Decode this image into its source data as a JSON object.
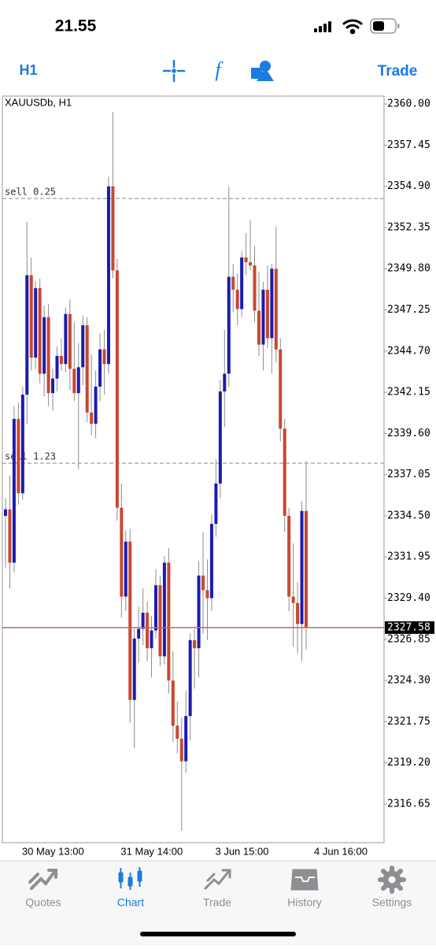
{
  "status_bar": {
    "time": "21.55"
  },
  "toolbar": {
    "timeframe": "H1",
    "trade": "Trade"
  },
  "chart_data": {
    "type": "candlestick",
    "title": "XAUUSDb, H1",
    "categories": [
      null,
      null,
      "30 May 13:00",
      null,
      null,
      null,
      null,
      null,
      null,
      null,
      null,
      null,
      null,
      null,
      null,
      null,
      null,
      null,
      null,
      null,
      null,
      null,
      null,
      null,
      null,
      "31 May 14:00",
      null,
      null,
      null,
      null,
      null,
      null,
      null,
      null,
      null,
      null,
      null,
      null,
      null,
      null,
      null,
      null,
      null,
      null,
      null,
      null,
      null,
      "3 Jun 15:00",
      null,
      null,
      null,
      null,
      null,
      null,
      null,
      null,
      null,
      null,
      null,
      null,
      null,
      null,
      null,
      null,
      null,
      null,
      null,
      null,
      null,
      null,
      "4 Jun 16:00"
    ],
    "open": [
      2334.5,
      2334.9,
      2331.6,
      2340.5,
      2335.9,
      2342.0,
      2349.4,
      2344.3,
      2348.6,
      2343.3,
      2346.8,
      2342.1,
      2343.0,
      2344.4,
      2343.9,
      2347.0,
      2343.6,
      2342.1,
      2343.7,
      2346.3,
      2340.9,
      2340.2,
      2342.5,
      2344.8,
      2343.9,
      2354.9,
      2349.7,
      2335.0,
      2329.5,
      2332.9,
      2323.1,
      2326.9,
      2327.5,
      2328.5,
      2326.3,
      2327.4,
      2330.2,
      2325.8,
      2331.6,
      2324.3,
      2321.5,
      2320.7,
      2319.3,
      2322.1,
      2326.8,
      2326.3,
      2330.8,
      2329.9,
      2329.4,
      2334.0,
      2336.5,
      2342.2,
      2343.3,
      2349.3,
      2348.5,
      2347.3,
      2350.5,
      2350.2,
      2350.0,
      2347.2,
      2345.1,
      2348.5,
      2345.5,
      2349.8,
      2344.8,
      2339.9,
      2334.5,
      2329.5,
      2329.1,
      2327.8,
      2334.8
    ],
    "high": [
      2335.6,
      2337.0,
      2341.3,
      2341.5,
      2342.5,
      2352.7,
      2350.5,
      2349.0,
      2349.2,
      2347.5,
      2347.6,
      2343.6,
      2345.0,
      2345.5,
      2347.4,
      2347.9,
      2346.5,
      2345.2,
      2346.9,
      2346.8,
      2344.5,
      2343.5,
      2345.8,
      2346.0,
      2355.5,
      2359.5,
      2350.4,
      2336.5,
      2333.6,
      2333.7,
      2327.5,
      2328.9,
      2330.0,
      2329.2,
      2328.3,
      2331.2,
      2330.8,
      2332.0,
      2332.5,
      2326.1,
      2323.0,
      2322.0,
      2323.7,
      2327.2,
      2327.5,
      2331.7,
      2333.5,
      2331.8,
      2334.6,
      2338.0,
      2342.9,
      2346.0,
      2354.9,
      2350.1,
      2349.5,
      2350.9,
      2352.0,
      2352.8,
      2351.2,
      2349.6,
      2349.0,
      2350.0,
      2350.1,
      2352.4,
      2345.5,
      2340.5,
      2335.0,
      2332.8,
      2330.4,
      2335.4,
      2337.9
    ],
    "low": [
      2331.3,
      2330.0,
      2331.0,
      2335.2,
      2335.5,
      2340.2,
      2343.5,
      2343.6,
      2342.7,
      2341.9,
      2341.3,
      2341.0,
      2342.2,
      2343.5,
      2343.4,
      2342.3,
      2341.6,
      2337.4,
      2342.6,
      2340.3,
      2339.5,
      2339.3,
      2341.6,
      2342.0,
      2343.3,
      2349.2,
      2334.2,
      2328.2,
      2328.6,
      2321.7,
      2320.1,
      2325.4,
      2326.5,
      2325.5,
      2324.5,
      2326.9,
      2325.2,
      2325.3,
      2323.5,
      2320.5,
      2319.8,
      2315.0,
      2318.6,
      2320.6,
      2323.8,
      2324.5,
      2327.2,
      2326.8,
      2328.6,
      2333.2,
      2335.6,
      2340.0,
      2342.5,
      2347.1,
      2346.3,
      2346.8,
      2349.4,
      2349.7,
      2346.5,
      2344.4,
      2343.5,
      2344.9,
      2343.3,
      2344.0,
      2339.1,
      2333.5,
      2328.6,
      2326.4,
      2326.0,
      2325.5,
      2326.2
    ],
    "close": [
      2334.9,
      2331.6,
      2340.5,
      2335.9,
      2342.0,
      2349.4,
      2344.3,
      2348.6,
      2343.3,
      2346.8,
      2342.1,
      2343.0,
      2344.4,
      2343.9,
      2347.0,
      2343.6,
      2342.1,
      2343.7,
      2346.3,
      2340.9,
      2340.2,
      2342.5,
      2344.8,
      2343.9,
      2354.9,
      2349.7,
      2335.0,
      2329.5,
      2332.9,
      2323.1,
      2326.9,
      2327.5,
      2328.5,
      2326.3,
      2327.4,
      2330.2,
      2325.8,
      2331.6,
      2324.3,
      2321.5,
      2320.7,
      2319.3,
      2322.1,
      2326.8,
      2326.3,
      2330.8,
      2329.9,
      2329.4,
      2334.0,
      2336.5,
      2342.2,
      2343.3,
      2349.3,
      2348.5,
      2347.3,
      2350.5,
      2350.2,
      2350.0,
      2347.2,
      2345.1,
      2348.5,
      2345.5,
      2349.8,
      2344.8,
      2339.9,
      2334.5,
      2329.5,
      2329.1,
      2327.8,
      2334.8,
      2327.58
    ],
    "up_color": "#1c1cae",
    "down_color": "#c9472f",
    "ylim": [
      2314.26,
      2360.49
    ],
    "yticks": [
      {
        "value": 2360,
        "label": "2360.00"
      },
      2357.45,
      {
        "value": 2354.9,
        "label": "2354.90"
      },
      2352.35,
      {
        "value": 2349.8,
        "label": "2349.80"
      },
      2347.25,
      {
        "value": 2344.7,
        "label": "2344.70"
      },
      2342.15,
      {
        "value": 2339.6,
        "label": "2339.60"
      },
      2337.05,
      {
        "value": 2334.5,
        "label": "2334.50"
      },
      2331.95,
      {
        "value": 2329.4,
        "label": "2329.40"
      },
      2326.85,
      {
        "value": 2324.3,
        "label": "2324.30"
      },
      2321.75,
      {
        "value": 2319.2,
        "label": "2319.20"
      },
      2316.65
    ],
    "levels": [
      {
        "label": "sell 0.25",
        "value": 2354.15
      },
      {
        "label": "sell 1.23",
        "value": 2337.76
      }
    ],
    "last_price": 2327.58
  },
  "tab_bar": {
    "tabs": [
      "Quotes",
      "Chart",
      "Trade",
      "History",
      "Settings"
    ],
    "active": 1
  }
}
